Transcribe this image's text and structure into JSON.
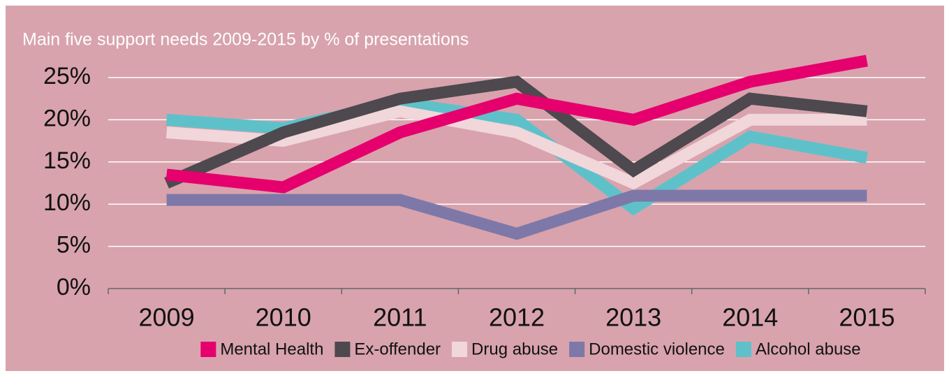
{
  "chart_data": {
    "type": "line",
    "title": "Main five support needs 2009-2015 by % of presentations",
    "categories": [
      "2009",
      "2010",
      "2011",
      "2012",
      "2013",
      "2014",
      "2015"
    ],
    "series": [
      {
        "name": "Mental Health",
        "color": "#e5006d",
        "values": [
          13.5,
          12,
          18.5,
          22.5,
          20,
          24.5,
          27
        ]
      },
      {
        "name": "Ex-offender",
        "color": "#4d494e",
        "values": [
          12.5,
          18.5,
          22.5,
          24.5,
          14,
          22.5,
          21
        ]
      },
      {
        "name": "Drug abuse",
        "color": "#f1d6da",
        "values": [
          18.5,
          17.5,
          21,
          18.5,
          12.5,
          20,
          20
        ]
      },
      {
        "name": "Domestic violence",
        "color": "#7e78a8",
        "values": [
          10.5,
          10.5,
          10.5,
          6.5,
          11,
          11,
          11
        ]
      },
      {
        "name": "Alcohol abuse",
        "color": "#5ec1c9",
        "values": [
          20,
          19,
          22,
          20,
          9.5,
          18,
          15.5
        ]
      }
    ],
    "ylim": [
      0,
      25
    ],
    "yticks": [
      {
        "value": 0,
        "label": "0%"
      },
      {
        "value": 5,
        "label": "5%"
      },
      {
        "value": 10,
        "label": "10%"
      },
      {
        "value": 15,
        "label": "15%"
      },
      {
        "value": 20,
        "label": "20%"
      },
      {
        "value": 25,
        "label": "25%"
      }
    ],
    "grid": true
  }
}
